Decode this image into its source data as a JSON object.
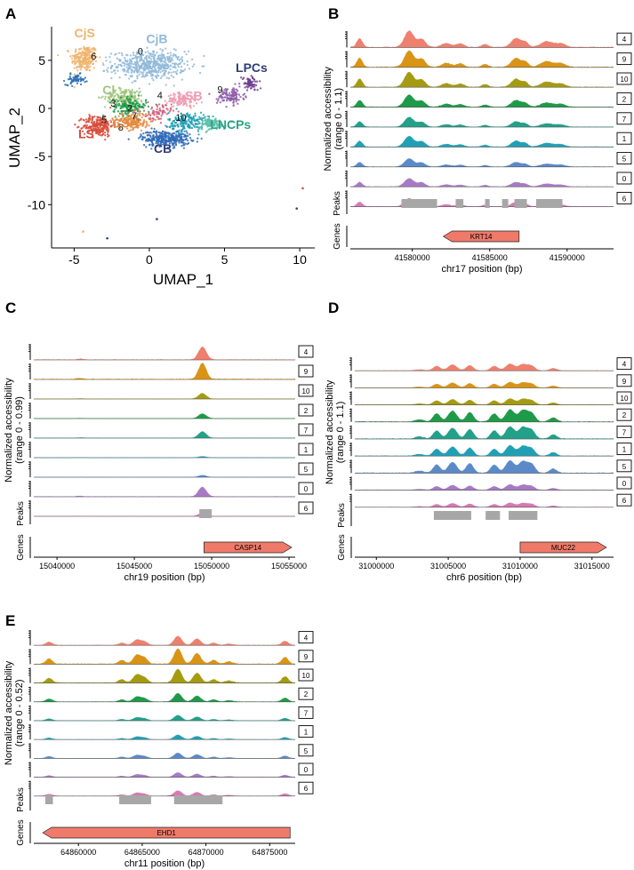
{
  "colors": {
    "c4": "#ef7f6e",
    "c9": "#d99416",
    "c10": "#a59b10",
    "c2": "#1f9a48",
    "c7": "#23a08a",
    "c1": "#21a0b5",
    "c5": "#5c8ac8",
    "c0": "#a87ac4",
    "c6": "#d67ab4",
    "peak": "#a7a7a7",
    "gene": "#f07a6a"
  },
  "chart_data": [
    {
      "panel": "A",
      "type": "scatter",
      "xlabel": "UMAP_1",
      "ylabel": "UMAP_2",
      "xlim": [
        -6.5,
        11
      ],
      "ylim": [
        -14.5,
        8.5
      ],
      "xticks": [
        -5,
        0,
        5,
        10
      ],
      "yticks": [
        5,
        0,
        -5,
        -10
      ],
      "cluster_labels": [
        {
          "text": "CjS",
          "x": -4.3,
          "y": 7.4,
          "color": "#f0b36a"
        },
        {
          "text": "CjB",
          "x": 0.5,
          "y": 6.8,
          "color": "#8fb9d9"
        },
        {
          "text": "LPCs",
          "x": 6.8,
          "y": 3.8,
          "color": "#2f3d78"
        },
        {
          "text": "Cl",
          "x": -2.7,
          "y": 1.5,
          "color": "#9ec67a"
        },
        {
          "text": "LSB",
          "x": 2.7,
          "y": 0.9,
          "color": "#ee9ab0"
        },
        {
          "text": "CSA",
          "x": -1.6,
          "y": -2.0,
          "color": "#e38a3f"
        },
        {
          "text": "LS",
          "x": -4.2,
          "y": -3.1,
          "color": "#d84b3a"
        },
        {
          "text": "LNCPs",
          "x": 5.4,
          "y": -2.1,
          "color": "#2aa287"
        },
        {
          "text": "CB",
          "x": 0.9,
          "y": -4.6,
          "color": "#2f3d78"
        }
      ],
      "cluster_numbers": [
        {
          "text": "6",
          "x": -3.7,
          "y": 5.1
        },
        {
          "text": "0",
          "x": -0.6,
          "y": 5.6
        },
        {
          "text": "4",
          "x": 0.7,
          "y": 1.0
        },
        {
          "text": "9",
          "x": 4.7,
          "y": 1.6
        },
        {
          "text": "3",
          "x": -2.4,
          "y": 0.2
        },
        {
          "text": "2",
          "x": -1.3,
          "y": -0.3
        },
        {
          "text": "7",
          "x": -1.0,
          "y": -1.1
        },
        {
          "text": "5",
          "x": -3.0,
          "y": -1.5
        },
        {
          "text": "10",
          "x": 2.1,
          "y": -1.3
        },
        {
          "text": "8",
          "x": -1.9,
          "y": -2.3
        }
      ],
      "clouds": [
        {
          "color": "#f0b36a",
          "cx": -4.3,
          "cy": 5.2,
          "sx": 0.8,
          "sy": 1.3,
          "n": 220
        },
        {
          "color": "#8fb9d9",
          "cx": 0.0,
          "cy": 4.5,
          "sx": 2.2,
          "sy": 1.3,
          "n": 520
        },
        {
          "color": "#2a6db5",
          "cx": -4.9,
          "cy": 3.0,
          "sx": 0.6,
          "sy": 0.5,
          "n": 60
        },
        {
          "color": "#d84b3a",
          "cx": -3.4,
          "cy": -1.8,
          "sx": 0.9,
          "sy": 1.0,
          "n": 230
        },
        {
          "color": "#9ec67a",
          "cx": -1.6,
          "cy": 1.2,
          "sx": 1.2,
          "sy": 0.8,
          "n": 180
        },
        {
          "color": "#1f9a48",
          "cx": -1.3,
          "cy": 0.2,
          "sx": 1.0,
          "sy": 0.8,
          "n": 150
        },
        {
          "color": "#e38a3f",
          "cx": -1.1,
          "cy": -1.3,
          "sx": 1.1,
          "sy": 0.8,
          "n": 170
        },
        {
          "color": "#2f6ab7",
          "cx": 1.1,
          "cy": -3.1,
          "sx": 1.5,
          "sy": 0.75,
          "n": 330
        },
        {
          "color": "#1d9db3",
          "cx": 2.5,
          "cy": -1.4,
          "sx": 1.1,
          "sy": 0.9,
          "n": 170
        },
        {
          "color": "#5ac0a8",
          "cx": 4.1,
          "cy": -1.6,
          "sx": 0.9,
          "sy": 0.6,
          "n": 100
        },
        {
          "color": "#ee9ab0",
          "cx": 2.2,
          "cy": 0.9,
          "sx": 0.9,
          "sy": 0.6,
          "n": 110
        },
        {
          "color": "#8d5aa8",
          "cx": 5.4,
          "cy": 1.3,
          "sx": 0.8,
          "sy": 0.8,
          "n": 120
        },
        {
          "color": "#6d3f91",
          "cx": 6.7,
          "cy": 2.6,
          "sx": 0.5,
          "sy": 0.7,
          "n": 70
        },
        {
          "color": "#d05a7a",
          "cx": 0.6,
          "cy": -0.4,
          "sx": 0.8,
          "sy": 0.8,
          "n": 70
        }
      ],
      "outliers": [
        {
          "x": -2.8,
          "y": -13.5,
          "color": "#2f3d78"
        },
        {
          "x": 0.5,
          "y": -11.5,
          "color": "#2f3d78"
        },
        {
          "x": 9.8,
          "y": -10.4,
          "color": "#2f3d78"
        },
        {
          "x": 10.2,
          "y": -8.3,
          "color": "#d84b3a"
        },
        {
          "x": -4.4,
          "y": -12.8,
          "color": "#f0b36a"
        }
      ]
    },
    {
      "panel": "B",
      "type": "area",
      "ylabel": "Normalized accessibility\n(range 0 - 1.1)",
      "xlabel": "chr17 position (bp)",
      "xlim": [
        41576000,
        41593000
      ],
      "xticks": [
        41580000,
        41585000,
        41590000
      ],
      "tick_labels": [
        "41580000",
        "41585000",
        "41590000"
      ],
      "tracks": [
        "4",
        "9",
        "10",
        "2",
        "7",
        "1",
        "5",
        "0",
        "6"
      ],
      "track_colors": [
        "#ef7f6e",
        "#d99416",
        "#a59b10",
        "#1f9a48",
        "#23a08a",
        "#21a0b5",
        "#5c8ac8",
        "#a87ac4",
        "#d67ab4"
      ],
      "peaks_label": "Peaks",
      "peaks": [
        [
          41579300,
          41581600
        ],
        [
          41582800,
          41583300
        ],
        [
          41584700,
          41585000
        ],
        [
          41585800,
          41586200
        ],
        [
          41586600,
          41587400
        ],
        [
          41588000,
          41589700
        ]
      ],
      "peak_weights": [
        1.0,
        0.45,
        0.3,
        0.35,
        0.6,
        0.55
      ],
      "genes_label": "Genes",
      "gene": {
        "name": "KRT14",
        "start": 41582000,
        "end": 41586900,
        "strand": "-"
      }
    },
    {
      "panel": "C",
      "type": "area",
      "ylabel": "Normalized accessibility\n(range 0 - 0.99)",
      "xlabel": "chr19 position (bp)",
      "xlim": [
        15038500,
        15055400
      ],
      "xticks": [
        15040000,
        15045000,
        15050000,
        15055000
      ],
      "tick_labels": [
        "15040000",
        "15045000",
        "15050000",
        "15055000"
      ],
      "tracks": [
        "4",
        "9",
        "10",
        "2",
        "7",
        "1",
        "5",
        "0",
        "6"
      ],
      "track_colors": [
        "#ef7f6e",
        "#d99416",
        "#a59b10",
        "#1f9a48",
        "#23a08a",
        "#21a0b5",
        "#5c8ac8",
        "#a87ac4",
        "#d67ab4"
      ],
      "peaks_label": "Peaks",
      "peaks": [
        [
          15049200,
          15050000
        ]
      ],
      "peak_weights": [
        1.0
      ],
      "genes_label": "Genes",
      "gene": {
        "name": "CASP14",
        "start": 15049500,
        "end": 15055200,
        "strand": "+"
      }
    },
    {
      "panel": "D",
      "type": "area",
      "ylabel": "Normalized accessibility\n(range 0 - 1.1)",
      "xlabel": "chr6 position (bp)",
      "xlim": [
        30998500,
        31016500
      ],
      "xticks": [
        31000000,
        31005000,
        31010000,
        31015000
      ],
      "tick_labels": [
        "31000000",
        "31005000",
        "31010000",
        "31015000"
      ],
      "tracks": [
        "4",
        "9",
        "10",
        "2",
        "7",
        "1",
        "5",
        "0",
        "6"
      ],
      "track_colors": [
        "#ef7f6e",
        "#d99416",
        "#a59b10",
        "#1f9a48",
        "#23a08a",
        "#21a0b5",
        "#5c8ac8",
        "#a87ac4",
        "#d67ab4"
      ],
      "peaks_label": "Peaks",
      "peaks": [
        [
          31004000,
          31006600
        ],
        [
          31007600,
          31008600
        ],
        [
          31009200,
          31011200
        ]
      ],
      "peak_weights": [
        1.0,
        0.8,
        1.0
      ],
      "genes_label": "Genes",
      "gene": {
        "name": "MUC22",
        "start": 31010000,
        "end": 31016000,
        "strand": "+"
      }
    },
    {
      "panel": "E",
      "type": "area",
      "ylabel": "Normalized accessibility\n(range 0 - 0.52)",
      "xlabel": "chr11 position (bp)",
      "xlim": [
        64856500,
        64877000
      ],
      "xticks": [
        64860000,
        64865000,
        64870000,
        64875000
      ],
      "tick_labels": [
        "64860000",
        "64865000",
        "64870000",
        "64875000"
      ],
      "tracks": [
        "4",
        "9",
        "10",
        "2",
        "7",
        "1",
        "5",
        "0",
        "6"
      ],
      "track_colors": [
        "#ef7f6e",
        "#d99416",
        "#a59b10",
        "#1f9a48",
        "#23a08a",
        "#21a0b5",
        "#5c8ac8",
        "#a87ac4",
        "#d67ab4"
      ],
      "peaks_label": "Peaks",
      "peaks": [
        [
          64857400,
          64858000
        ],
        [
          64863200,
          64865700
        ],
        [
          64867500,
          64871300
        ]
      ],
      "peak_weights": [
        0.6,
        1.0,
        1.0
      ],
      "genes_label": "Genes",
      "gene": {
        "name": "EHD1",
        "start": 64857200,
        "end": 64876600,
        "strand": "-"
      }
    }
  ]
}
